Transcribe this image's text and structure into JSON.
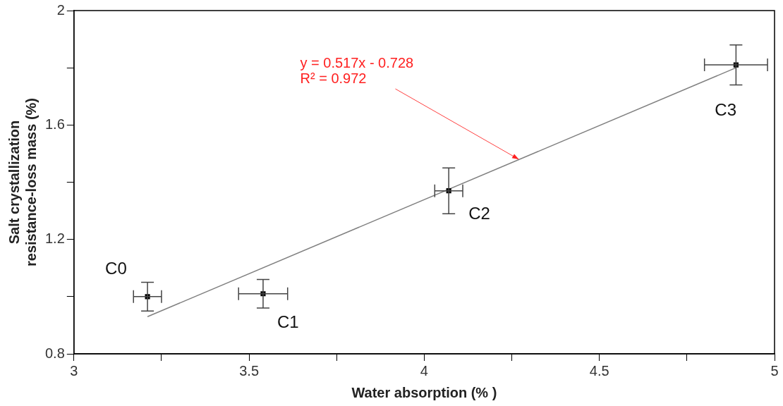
{
  "chart_data": {
    "type": "scatter",
    "xlabel": "Water absorption (% )",
    "ylabel": "Salt crystallization\nresistance-loss mass (%)",
    "xlim": [
      3,
      5
    ],
    "xticks": [
      3,
      {
        "value": 3.25,
        "label": null
      },
      3.5,
      {
        "value": 3.75,
        "label": null
      },
      4,
      {
        "value": 4.25,
        "label": null
      },
      4.5,
      {
        "value": 4.75,
        "label": null
      },
      5
    ],
    "ylim": [
      0.8,
      2
    ],
    "yticks": [
      0.8,
      {
        "value": 1.0,
        "label": null
      },
      1.2,
      {
        "value": 1.4,
        "label": null
      },
      1.6,
      {
        "value": 1.8,
        "label": null
      },
      2
    ],
    "grid": false,
    "legend": false,
    "series": [
      {
        "color": "#000000",
        "marker": "square",
        "x": [
          3.21,
          3.54,
          4.07,
          4.89
        ],
        "values": [
          1.0,
          1.01,
          1.37,
          1.81
        ],
        "errors": [
          0.05,
          0.05,
          0.08,
          0.07
        ],
        "xerrors": [
          0.04,
          0.07,
          0.04,
          0.09
        ]
      },
      {
        "type": "line",
        "color": "#808080",
        "marker": "none",
        "line_style": "solid",
        "x": [
          3.21,
          4.89
        ],
        "values": [
          0.93,
          1.8
        ]
      }
    ],
    "annotations": [
      {
        "text": "y = 0.517x - 0.728\nR² = 0.972",
        "x": 4.27,
        "y": 1.48
      },
      {
        "text": "C0",
        "x": 3.21,
        "y": 1.0
      },
      {
        "text": "C1",
        "x": 3.54,
        "y": 1.01
      },
      {
        "text": "C2",
        "x": 4.07,
        "y": 1.37
      },
      {
        "text": "C3",
        "x": 4.89,
        "y": 1.81
      }
    ]
  }
}
